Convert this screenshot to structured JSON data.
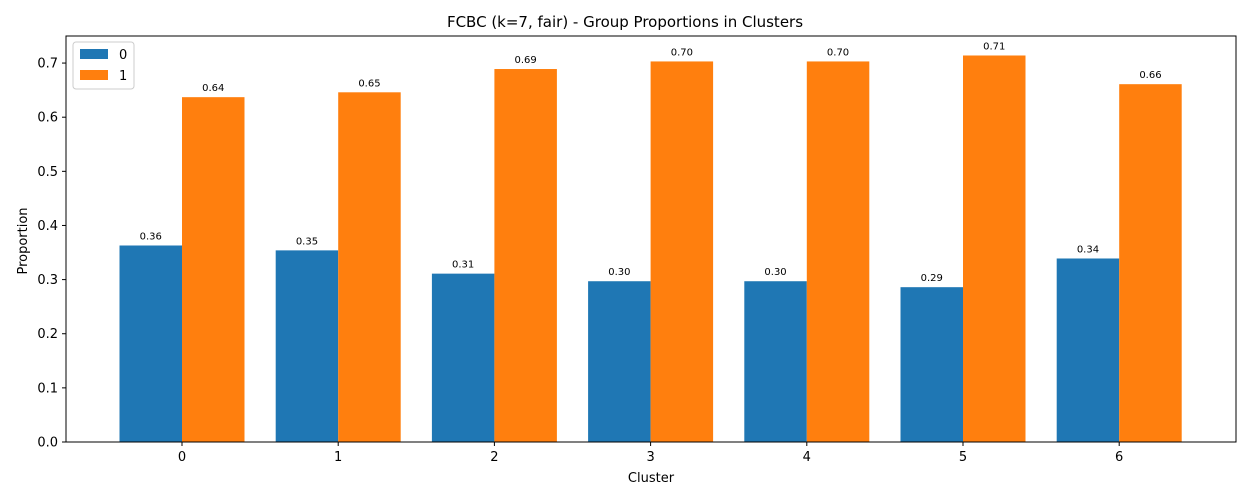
{
  "chart_data": {
    "type": "bar",
    "title": "FCBC (k=7, fair) - Group Proportions in Clusters",
    "xlabel": "Cluster",
    "ylabel": "Proportion",
    "categories": [
      "0",
      "1",
      "2",
      "3",
      "4",
      "5",
      "6"
    ],
    "series": [
      {
        "name": "0",
        "color": "#1f77b4",
        "values": [
          0.363,
          0.354,
          0.311,
          0.297,
          0.297,
          0.286,
          0.339
        ],
        "labels": [
          "0.36",
          "0.35",
          "0.31",
          "0.30",
          "0.30",
          "0.29",
          "0.34"
        ]
      },
      {
        "name": "1",
        "color": "#ff7f0e",
        "values": [
          0.637,
          0.646,
          0.689,
          0.703,
          0.703,
          0.714,
          0.661
        ],
        "labels": [
          "0.64",
          "0.65",
          "0.69",
          "0.70",
          "0.70",
          "0.71",
          "0.66"
        ]
      }
    ],
    "ylim": [
      0,
      0.75
    ],
    "yticks": [
      "0.0",
      "0.1",
      "0.2",
      "0.3",
      "0.4",
      "0.5",
      "0.6",
      "0.7"
    ],
    "legend_position": "top-left",
    "grid": false
  }
}
